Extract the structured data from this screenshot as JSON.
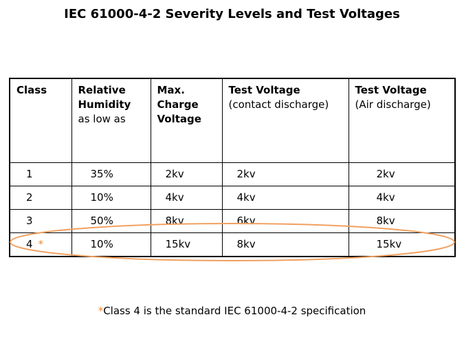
{
  "title": "IEC 61000-4-2 Severity Levels and Test Voltages",
  "table": {
    "headers": [
      {
        "bold": "Class"
      },
      {
        "bold": "Relative Humidity",
        "normal": "as low as"
      },
      {
        "bold": "Max. Charge Voltage"
      },
      {
        "bold": "Test Voltage",
        "normal": "(contact discharge)"
      },
      {
        "bold": "Test Voltage",
        "normal": "(Air discharge)"
      }
    ],
    "rows": [
      [
        "1",
        "35%",
        "2kv",
        "2kv",
        "2kv"
      ],
      [
        "2",
        "10%",
        "4kv",
        "4kv",
        "4kv"
      ],
      [
        "3",
        "50%",
        "8kv",
        "6kv",
        "8kv"
      ],
      [
        "4",
        "10%",
        "15kv",
        "8kv",
        "15kv"
      ]
    ],
    "marker": "*"
  },
  "footnote": {
    "marker": "*",
    "text": "Class 4 is the standard IEC 61000-4-2 specification"
  }
}
